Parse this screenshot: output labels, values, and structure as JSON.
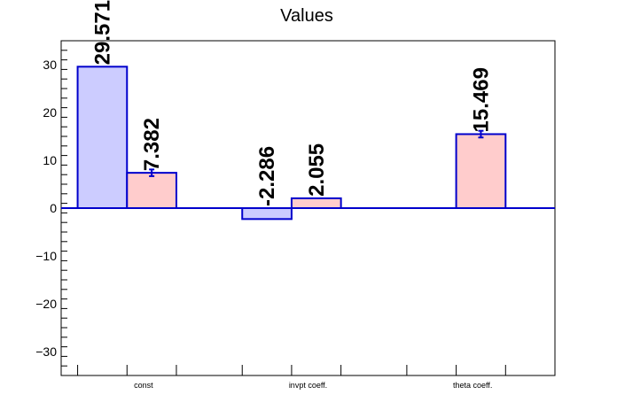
{
  "chart_data": {
    "type": "bar",
    "title": "Values",
    "xlabel": "",
    "ylabel": "",
    "categories": [
      "const",
      "invpt coeff.",
      "theta coeff."
    ],
    "series": [
      {
        "values": [
          29.571,
          -2.286,
          null
        ],
        "labels": [
          "29.571",
          "-2.286",
          ""
        ],
        "errors": [
          0,
          0,
          0
        ],
        "fill": "#ccccff",
        "stroke": "#0000cc"
      },
      {
        "values": [
          7.382,
          2.055,
          15.469
        ],
        "labels": [
          "7.382",
          "2.055",
          "15.469"
        ],
        "errors": [
          0.7,
          0,
          0.7
        ],
        "fill": "#ffcccc",
        "stroke": "#0000cc"
      }
    ],
    "ylim": [
      -35,
      35
    ],
    "yticks": [
      30,
      20,
      10,
      0,
      -10,
      -20,
      -30
    ],
    "ytick_labels": [
      "30",
      "20",
      "10",
      "0",
      "−10",
      "−20",
      "−30"
    ],
    "grid": false,
    "legend": "none"
  }
}
